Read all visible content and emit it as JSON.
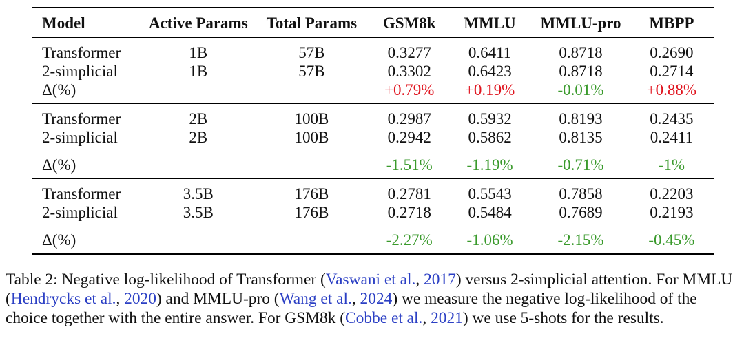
{
  "table": {
    "headers": [
      "Model",
      "Active Params",
      "Total Params",
      "GSM8k",
      "MMLU",
      "MMLU-pro",
      "MBPP"
    ],
    "groups": [
      {
        "rows": [
          {
            "model": "Transformer",
            "active": "1B",
            "total": "57B",
            "gsm8k": "0.3277",
            "mmlu": "0.6411",
            "mmlu_pro": "0.8718",
            "mbpp": "0.2690"
          },
          {
            "model": "2-simplicial",
            "active": "1B",
            "total": "57B",
            "gsm8k": "0.3302",
            "mmlu": "0.6423",
            "mmlu_pro": "0.8718",
            "mbpp": "0.2714"
          }
        ],
        "delta": {
          "label": "Δ(%)",
          "gsm8k": "+0.79%",
          "mmlu": "+0.19%",
          "mmlu_pro": "-0.01%",
          "mbpp": "+0.88%"
        }
      },
      {
        "rows": [
          {
            "model": "Transformer",
            "active": "2B",
            "total": "100B",
            "gsm8k": "0.2987",
            "mmlu": "0.5932",
            "mmlu_pro": "0.8193",
            "mbpp": "0.2435"
          },
          {
            "model": "2-simplicial",
            "active": "2B",
            "total": "100B",
            "gsm8k": "0.2942",
            "mmlu": "0.5862",
            "mmlu_pro": "0.8135",
            "mbpp": "0.2411"
          }
        ],
        "delta": {
          "label": "Δ(%)",
          "gsm8k": "-1.51%",
          "mmlu": "-1.19%",
          "mmlu_pro": "-0.71%",
          "mbpp": "-1%"
        }
      },
      {
        "rows": [
          {
            "model": "Transformer",
            "active": "3.5B",
            "total": "176B",
            "gsm8k": "0.2781",
            "mmlu": "0.5543",
            "mmlu_pro": "0.7858",
            "mbpp": "0.2203"
          },
          {
            "model": "2-simplicial",
            "active": "3.5B",
            "total": "176B",
            "gsm8k": "0.2718",
            "mmlu": "0.5484",
            "mmlu_pro": "0.7689",
            "mbpp": "0.2193"
          }
        ],
        "delta": {
          "label": "Δ(%)",
          "gsm8k": "-2.27%",
          "mmlu": "-1.06%",
          "mmlu_pro": "-2.15%",
          "mbpp": "-0.45%"
        }
      }
    ],
    "colors": {
      "increase": "#e0141e",
      "decrease": "#3a9a2c",
      "citation": "#2b3fc4"
    }
  },
  "caption": {
    "t1": "Table 2: Negative log-likelihood of Transformer (",
    "c1a": "Vaswani et al.",
    "t2": ", ",
    "c1b": "2017",
    "t3": ") versus 2-simplicial attention. For MMLU (",
    "c2a": "Hendrycks et al.",
    "t4": ", ",
    "c2b": "2020",
    "t5": ") and MMLU-pro (",
    "c3a": "Wang et al.",
    "t6": ", ",
    "c3b": "2024",
    "t7": ") we measure the negative log-likelihood of the choice together with the entire answer. For GSM8k (",
    "c4a": "Cobbe et al.",
    "t8": ", ",
    "c4b": "2021",
    "t9": ") we use 5-shots for the results."
  }
}
